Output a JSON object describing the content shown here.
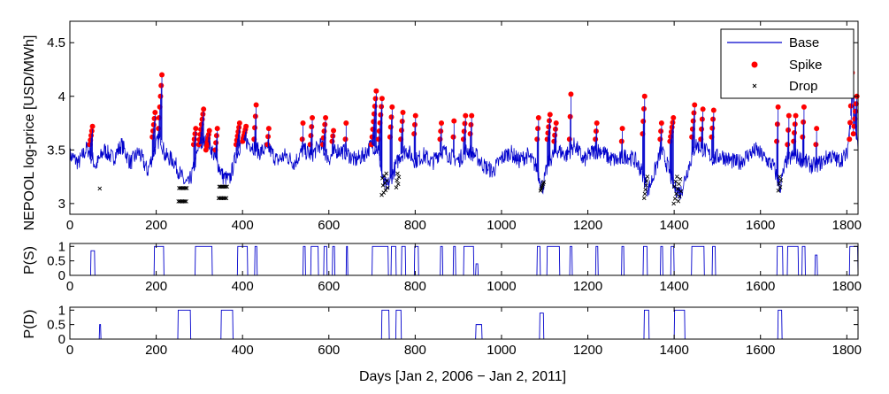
{
  "chart_data": [
    {
      "type": "line",
      "panel": "top",
      "ylabel": "NEPOOL log-price [USD/MWh]",
      "xlim": [
        0,
        1826
      ],
      "ylim": [
        2.9,
        4.7
      ],
      "yticks": [
        3,
        3.5,
        4,
        4.5
      ],
      "ytick_labels": [
        "3",
        "3.5",
        "4",
        "4.5"
      ],
      "xticks": [
        0,
        200,
        400,
        600,
        800,
        1000,
        1200,
        1400,
        1600,
        1800
      ],
      "xtick_labels": [
        "0",
        "200",
        "400",
        "600",
        "800",
        "1000",
        "1200",
        "1400",
        "1600",
        "1800"
      ],
      "legend": {
        "position": "top-right",
        "entries": [
          {
            "label": "Base",
            "marker": "line",
            "color": "#0000cc"
          },
          {
            "label": "Spike",
            "marker": "dot",
            "color": "#ff0000"
          },
          {
            "label": "Drop",
            "marker": "x",
            "color": "#000000"
          }
        ]
      },
      "base_anchors": [
        [
          0,
          3.45
        ],
        [
          20,
          3.38
        ],
        [
          40,
          3.52
        ],
        [
          60,
          3.35
        ],
        [
          80,
          3.5
        ],
        [
          100,
          3.42
        ],
        [
          120,
          3.55
        ],
        [
          140,
          3.38
        ],
        [
          160,
          3.48
        ],
        [
          180,
          3.3
        ],
        [
          200,
          3.55
        ],
        [
          210,
          3.62
        ],
        [
          220,
          3.45
        ],
        [
          240,
          3.4
        ],
        [
          255,
          3.28
        ],
        [
          265,
          3.2
        ],
        [
          275,
          3.18
        ],
        [
          285,
          3.3
        ],
        [
          300,
          3.55
        ],
        [
          320,
          3.58
        ],
        [
          340,
          3.4
        ],
        [
          355,
          3.25
        ],
        [
          370,
          3.22
        ],
        [
          385,
          3.45
        ],
        [
          400,
          3.6
        ],
        [
          420,
          3.55
        ],
        [
          440,
          3.48
        ],
        [
          460,
          3.52
        ],
        [
          480,
          3.4
        ],
        [
          500,
          3.45
        ],
        [
          520,
          3.38
        ],
        [
          540,
          3.5
        ],
        [
          560,
          3.45
        ],
        [
          580,
          3.55
        ],
        [
          600,
          3.42
        ],
        [
          620,
          3.5
        ],
        [
          640,
          3.48
        ],
        [
          660,
          3.4
        ],
        [
          680,
          3.45
        ],
        [
          700,
          3.55
        ],
        [
          715,
          3.5
        ],
        [
          725,
          3.2
        ],
        [
          735,
          3.15
        ],
        [
          750,
          3.3
        ],
        [
          765,
          3.45
        ],
        [
          780,
          3.5
        ],
        [
          800,
          3.4
        ],
        [
          820,
          3.45
        ],
        [
          840,
          3.38
        ],
        [
          860,
          3.5
        ],
        [
          880,
          3.45
        ],
        [
          900,
          3.4
        ],
        [
          920,
          3.5
        ],
        [
          940,
          3.45
        ],
        [
          960,
          3.35
        ],
        [
          980,
          3.3
        ],
        [
          1000,
          3.42
        ],
        [
          1020,
          3.48
        ],
        [
          1040,
          3.4
        ],
        [
          1060,
          3.45
        ],
        [
          1080,
          3.35
        ],
        [
          1095,
          3.15
        ],
        [
          1110,
          3.4
        ],
        [
          1130,
          3.5
        ],
        [
          1150,
          3.45
        ],
        [
          1170,
          3.55
        ],
        [
          1190,
          3.4
        ],
        [
          1210,
          3.48
        ],
        [
          1230,
          3.5
        ],
        [
          1250,
          3.42
        ],
        [
          1270,
          3.4
        ],
        [
          1290,
          3.45
        ],
        [
          1310,
          3.4
        ],
        [
          1325,
          3.3
        ],
        [
          1340,
          3.12
        ],
        [
          1355,
          3.3
        ],
        [
          1370,
          3.5
        ],
        [
          1385,
          3.35
        ],
        [
          1400,
          3.15
        ],
        [
          1415,
          3.1
        ],
        [
          1430,
          3.3
        ],
        [
          1450,
          3.55
        ],
        [
          1470,
          3.5
        ],
        [
          1490,
          3.42
        ],
        [
          1510,
          3.45
        ],
        [
          1530,
          3.4
        ],
        [
          1550,
          3.38
        ],
        [
          1570,
          3.45
        ],
        [
          1590,
          3.5
        ],
        [
          1610,
          3.42
        ],
        [
          1630,
          3.35
        ],
        [
          1645,
          3.15
        ],
        [
          1660,
          3.4
        ],
        [
          1680,
          3.45
        ],
        [
          1700,
          3.4
        ],
        [
          1720,
          3.35
        ],
        [
          1740,
          3.38
        ],
        [
          1760,
          3.45
        ],
        [
          1780,
          3.4
        ],
        [
          1800,
          3.45
        ],
        [
          1810,
          3.85
        ],
        [
          1815,
          4.1
        ],
        [
          1820,
          3.7
        ],
        [
          1826,
          3.5
        ]
      ],
      "spike_groups": [
        [
          50,
          3.55,
          3.72,
          5
        ],
        [
          195,
          3.62,
          3.85,
          5
        ],
        [
          210,
          3.7,
          4.2,
          6
        ],
        [
          290,
          3.55,
          3.7,
          4
        ],
        [
          305,
          3.55,
          3.88,
          8
        ],
        [
          320,
          3.5,
          3.68,
          6
        ],
        [
          340,
          3.5,
          3.7,
          4
        ],
        [
          390,
          3.55,
          3.75,
          6
        ],
        [
          405,
          3.58,
          3.72,
          6
        ],
        [
          430,
          3.6,
          3.92,
          4
        ],
        [
          460,
          3.55,
          3.7,
          3
        ],
        [
          540,
          3.6,
          3.75,
          2
        ],
        [
          560,
          3.55,
          3.8,
          4
        ],
        [
          590,
          3.55,
          3.8,
          5
        ],
        [
          610,
          3.58,
          3.68,
          3
        ],
        [
          640,
          3.6,
          3.75,
          2
        ],
        [
          705,
          3.55,
          4.05,
          8
        ],
        [
          720,
          3.6,
          3.98,
          6
        ],
        [
          745,
          3.62,
          3.9,
          4
        ],
        [
          770,
          3.6,
          3.85,
          4
        ],
        [
          800,
          3.65,
          3.82,
          3
        ],
        [
          860,
          3.6,
          3.75,
          3
        ],
        [
          890,
          3.62,
          3.77,
          2
        ],
        [
          915,
          3.6,
          3.82,
          4
        ],
        [
          930,
          3.65,
          3.82,
          3
        ],
        [
          1085,
          3.6,
          3.8,
          3
        ],
        [
          1110,
          3.6,
          3.83,
          5
        ],
        [
          1125,
          3.58,
          3.75,
          4
        ],
        [
          1160,
          3.6,
          4.02,
          3
        ],
        [
          1220,
          3.6,
          3.75,
          3
        ],
        [
          1280,
          3.58,
          3.7,
          2
        ],
        [
          1330,
          3.65,
          4.0,
          4
        ],
        [
          1370,
          3.6,
          3.75,
          3
        ],
        [
          1395,
          3.58,
          3.8,
          6
        ],
        [
          1445,
          3.62,
          3.92,
          5
        ],
        [
          1465,
          3.6,
          3.88,
          4
        ],
        [
          1490,
          3.62,
          3.87,
          4
        ],
        [
          1640,
          3.58,
          3.9,
          3
        ],
        [
          1665,
          3.55,
          3.82,
          3
        ],
        [
          1680,
          3.58,
          3.82,
          4
        ],
        [
          1700,
          3.62,
          3.9,
          3
        ],
        [
          1730,
          3.55,
          3.7,
          2
        ],
        [
          1810,
          3.6,
          4.22,
          5
        ],
        [
          1820,
          3.65,
          4.0,
          6
        ]
      ],
      "drop_groups": [
        [
          70,
          3.14,
          3.14,
          1
        ],
        [
          262,
          3.02,
          3.25,
          14
        ],
        [
          355,
          3.05,
          3.25,
          14
        ],
        [
          730,
          3.08,
          3.28,
          10
        ],
        [
          760,
          3.15,
          3.28,
          5
        ],
        [
          1095,
          3.12,
          3.2,
          6
        ],
        [
          1335,
          3.05,
          3.25,
          6
        ],
        [
          1408,
          3.0,
          3.25,
          12
        ],
        [
          1645,
          3.12,
          3.25,
          5
        ]
      ]
    },
    {
      "type": "line",
      "panel": "middle",
      "ylabel": "P(S)",
      "xlim": [
        0,
        1826
      ],
      "ylim": [
        0,
        1.1
      ],
      "yticks": [
        0,
        0.5,
        1
      ],
      "ytick_labels": [
        "0",
        "0.5",
        "1"
      ],
      "xticks": [
        0,
        200,
        400,
        600,
        800,
        1000,
        1200,
        1400,
        1600,
        1800
      ],
      "xtick_labels": [
        "0",
        "200",
        "400",
        "600",
        "800",
        "1000",
        "1200",
        "1400",
        "1600",
        "1800"
      ],
      "pulses": [
        [
          48,
          58,
          0.85
        ],
        [
          195,
          218,
          1
        ],
        [
          290,
          330,
          1
        ],
        [
          388,
          412,
          1
        ],
        [
          428,
          434,
          1
        ],
        [
          540,
          546,
          1
        ],
        [
          558,
          576,
          1
        ],
        [
          588,
          596,
          1
        ],
        [
          608,
          614,
          1
        ],
        [
          640,
          644,
          1
        ],
        [
          700,
          738,
          1
        ],
        [
          744,
          756,
          1
        ],
        [
          768,
          778,
          1
        ],
        [
          798,
          808,
          1
        ],
        [
          858,
          864,
          1
        ],
        [
          888,
          894,
          1
        ],
        [
          912,
          936,
          1
        ],
        [
          940,
          946,
          0.4
        ],
        [
          1082,
          1090,
          1
        ],
        [
          1105,
          1135,
          1
        ],
        [
          1158,
          1164,
          1
        ],
        [
          1218,
          1224,
          1
        ],
        [
          1278,
          1284,
          1
        ],
        [
          1328,
          1338,
          1
        ],
        [
          1368,
          1374,
          1
        ],
        [
          1392,
          1400,
          1
        ],
        [
          1440,
          1470,
          1
        ],
        [
          1488,
          1496,
          1
        ],
        [
          1638,
          1652,
          1
        ],
        [
          1662,
          1688,
          1
        ],
        [
          1696,
          1704,
          1
        ],
        [
          1726,
          1732,
          0.7
        ],
        [
          1806,
          1826,
          1
        ]
      ]
    },
    {
      "type": "line",
      "panel": "bottom",
      "ylabel": "P(D)",
      "xlabel": "Days [Jan 2, 2006 − Jan 2, 2011]",
      "xlim": [
        0,
        1826
      ],
      "ylim": [
        0,
        1.1
      ],
      "yticks": [
        0,
        0.5,
        1
      ],
      "ytick_labels": [
        "0",
        "0.5",
        "1"
      ],
      "xticks": [
        0,
        200,
        400,
        600,
        800,
        1000,
        1200,
        1400,
        1600,
        1800
      ],
      "xtick_labels": [
        "0",
        "200",
        "400",
        "600",
        "800",
        "1000",
        "1200",
        "1400",
        "1600",
        "1800"
      ],
      "pulses": [
        [
          68,
          72,
          0.5
        ],
        [
          250,
          280,
          1
        ],
        [
          350,
          378,
          1
        ],
        [
          722,
          740,
          1
        ],
        [
          755,
          768,
          1
        ],
        [
          940,
          955,
          0.5
        ],
        [
          1088,
          1098,
          0.9
        ],
        [
          1330,
          1342,
          1
        ],
        [
          1400,
          1425,
          1
        ],
        [
          1640,
          1650,
          1
        ]
      ]
    }
  ]
}
